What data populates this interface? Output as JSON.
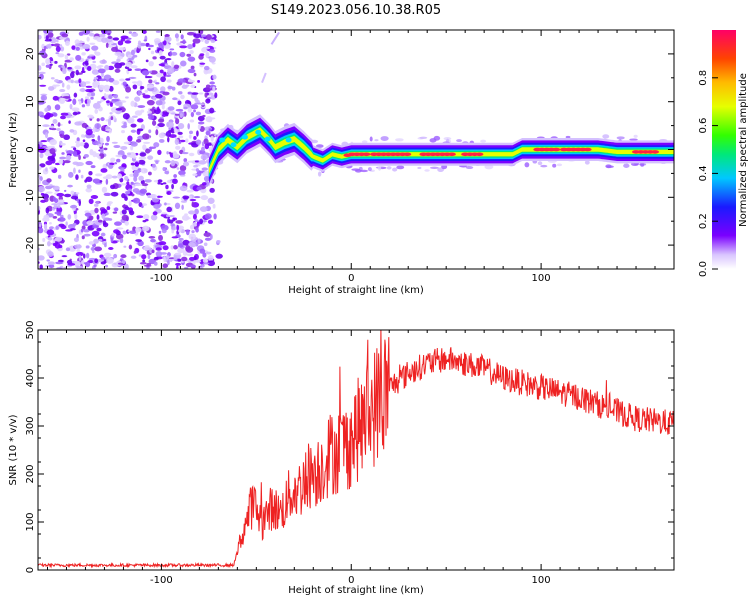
{
  "title": "S149.2023.056.10.38.R05",
  "chart_data": [
    {
      "type": "heatmap",
      "xlabel": "Height of straight line (km)",
      "ylabel": "Frequency (Hz)",
      "xlim": [
        -165,
        170
      ],
      "ylim": [
        -25,
        25
      ],
      "x_ticks": [
        -100,
        0,
        100
      ],
      "y_ticks": [
        20,
        10,
        0,
        -10,
        -20
      ],
      "colorbar": {
        "label": "Normalized spectral amplitude",
        "range": [
          0,
          1
        ],
        "ticks": [
          0.0,
          0.2,
          0.4,
          0.6,
          0.8
        ]
      },
      "noise_region_x": [
        -165,
        -72
      ],
      "ridge": [
        {
          "x": -75,
          "y": -4.5
        },
        {
          "x": -70,
          "y": 0
        },
        {
          "x": -65,
          "y": 2
        },
        {
          "x": -60,
          "y": 0.5
        },
        {
          "x": -55,
          "y": 2.5
        },
        {
          "x": -48,
          "y": 4
        },
        {
          "x": -43,
          "y": 2
        },
        {
          "x": -40,
          "y": 0.5
        },
        {
          "x": -35,
          "y": 1.5
        },
        {
          "x": -30,
          "y": 2.2
        },
        {
          "x": -25,
          "y": 0.5
        },
        {
          "x": -20,
          "y": -1.5
        },
        {
          "x": -15,
          "y": -2.3
        },
        {
          "x": -10,
          "y": -1
        },
        {
          "x": -5,
          "y": -1.5
        },
        {
          "x": 0,
          "y": -1
        },
        {
          "x": 30,
          "y": -1
        },
        {
          "x": 60,
          "y": -1
        },
        {
          "x": 85,
          "y": -1
        },
        {
          "x": 90,
          "y": 0
        },
        {
          "x": 130,
          "y": 0
        },
        {
          "x": 140,
          "y": -0.5
        },
        {
          "x": 170,
          "y": -0.5
        }
      ]
    },
    {
      "type": "line",
      "xlabel": "Height of straight line (km)",
      "ylabel": "SNR (10 * v/v)",
      "xlim": [
        -165,
        170
      ],
      "ylim": [
        0,
        500
      ],
      "x_ticks": [
        -100,
        0,
        100
      ],
      "y_ticks": [
        0,
        100,
        200,
        300,
        400,
        500
      ],
      "color": "#ee2222",
      "series": [
        {
          "x": [
            -165,
            -140,
            -120,
            -100,
            -80,
            -62,
            -57,
            -52,
            -47,
            -42,
            -37,
            -32,
            -27,
            -22,
            -17,
            -12,
            -7,
            -2,
            5,
            12,
            20,
            30,
            40,
            50,
            60,
            70,
            80,
            90,
            100,
            110,
            120,
            130,
            140,
            150,
            160,
            170
          ],
          "values": [
            10,
            10,
            10,
            10,
            10,
            10,
            80,
            140,
            100,
            130,
            120,
            160,
            170,
            200,
            210,
            240,
            250,
            260,
            300,
            340,
            380,
            410,
            430,
            440,
            430,
            420,
            400,
            390,
            380,
            370,
            360,
            345,
            330,
            315,
            310,
            305
          ]
        }
      ]
    }
  ]
}
